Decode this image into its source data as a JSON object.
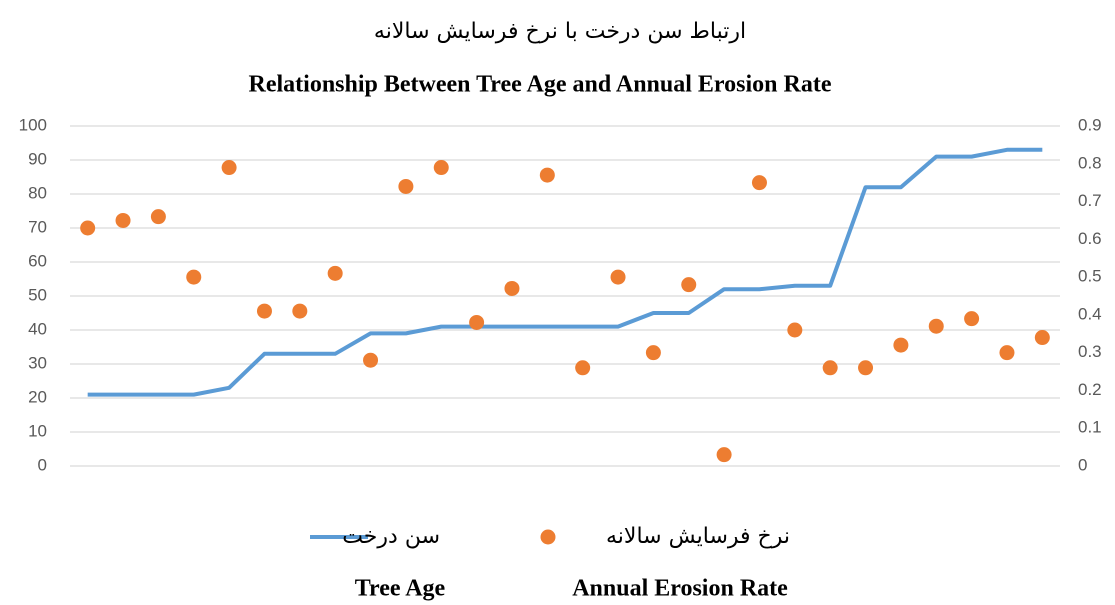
{
  "chart_data": {
    "type": "line-scatter",
    "title": "ارتباط سن درخت با نرخ فرسایش سالانه",
    "subtitle": "Relationship Between Tree Age and Annual Erosion Rate",
    "categories": [
      null,
      null,
      null,
      null,
      null,
      null,
      null,
      null,
      null,
      null,
      null,
      null,
      null,
      null,
      null,
      null,
      null,
      null,
      null,
      null,
      null,
      null,
      null,
      null,
      null,
      null,
      null,
      null
    ],
    "series": [
      {
        "name": "سن درخت",
        "name_en": "Tree Age",
        "type": "line",
        "color": "#5b9bd5",
        "values": [
          21,
          21,
          21,
          21,
          23,
          33,
          33,
          33,
          39,
          39,
          41,
          41,
          41,
          41,
          41,
          41,
          45,
          45,
          52,
          52,
          53,
          53,
          82,
          82,
          91,
          91,
          93,
          93
        ]
      },
      {
        "name": "نرخ فرسایش سالانه",
        "name_en": "Annual Erosion Rate",
        "type": "scatter",
        "color": "#ed7d31",
        "axis": "y2",
        "values": [
          0.63,
          0.65,
          0.66,
          0.5,
          0.79,
          0.41,
          0.41,
          0.51,
          0.28,
          0.74,
          0.79,
          0.38,
          0.47,
          0.77,
          0.26,
          0.5,
          0.3,
          0.48,
          0.03,
          0.75,
          0.36,
          0.26,
          0.26,
          0.32,
          0.37,
          0.39,
          0.3,
          0.34
        ]
      }
    ],
    "ylim": [
      0,
      100
    ],
    "yticks": [
      0,
      10,
      20,
      30,
      40,
      50,
      60,
      70,
      80,
      90,
      100
    ],
    "y2lim": [
      0,
      0.9
    ],
    "y2ticks": [
      0,
      0.1,
      0.2,
      0.3,
      0.4,
      0.5,
      0.6,
      0.7,
      0.8,
      0.9
    ],
    "grid": true,
    "legend": "bottom"
  }
}
